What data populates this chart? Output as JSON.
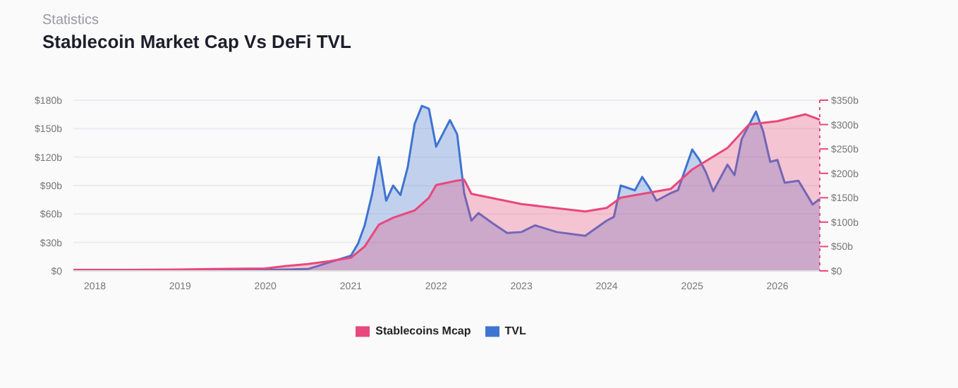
{
  "chart_data": {
    "type": "area",
    "title": "Stablecoin Market Cap Vs DeFi TVL",
    "subtitle": "Statistics",
    "series": [
      {
        "name": "Stablecoins Mcap",
        "color": "#e8487c",
        "axis": "y2",
        "x": [
          "2017-10",
          "2018-06",
          "2019-01",
          "2019-06",
          "2020-01",
          "2020-04",
          "2020-07",
          "2020-10",
          "2021-01",
          "2021-03",
          "2021-05",
          "2021-07",
          "2021-10",
          "2021-12",
          "2022-01",
          "2022-04",
          "2022-05",
          "2022-06",
          "2023-01",
          "2023-10",
          "2024-01",
          "2024-03",
          "2024-10",
          "2025-01",
          "2025-06",
          "2025-09",
          "2026-01",
          "2026-05",
          "2026-07"
        ],
        "values": [
          2,
          2,
          3,
          4,
          5,
          10,
          14,
          20,
          27,
          50,
          95,
          109,
          124,
          150,
          176,
          185,
          187,
          158,
          137,
          122,
          129,
          150,
          168,
          208,
          252,
          300,
          307,
          321,
          310
        ]
      },
      {
        "name": "TVL",
        "color": "#3f74d0",
        "x": [
          "2017-10",
          "2019-01",
          "2020-01",
          "2020-07",
          "2020-10",
          "2021-01",
          "2021-02",
          "2021-03",
          "2021-04",
          "2021-05",
          "2021-06",
          "2021-07",
          "2021-08",
          "2021-09",
          "2021-10",
          "2021-11",
          "2021-12",
          "2022-01",
          "2022-03",
          "2022-04",
          "2022-05",
          "2022-06",
          "2022-07",
          "2022-09",
          "2022-11",
          "2023-01",
          "2023-03",
          "2023-06",
          "2023-10",
          "2024-01",
          "2024-02",
          "2024-03",
          "2024-05",
          "2024-06",
          "2024-07",
          "2024-08",
          "2024-10",
          "2024-11",
          "2025-01",
          "2025-02",
          "2025-03",
          "2025-04",
          "2025-06",
          "2025-07",
          "2025-08",
          "2025-10",
          "2025-11",
          "2025-12",
          "2026-01",
          "2026-02",
          "2026-04",
          "2026-06",
          "2026-07"
        ],
        "values": [
          0,
          1,
          1,
          2,
          9,
          16,
          29,
          48,
          80,
          120,
          74,
          90,
          80,
          109,
          155,
          174,
          171,
          131,
          159,
          144,
          82,
          53,
          61,
          50,
          40,
          41,
          48,
          41,
          37,
          53,
          57,
          90,
          85,
          99,
          88,
          74,
          82,
          85,
          128,
          117,
          104,
          84,
          112,
          101,
          139,
          168,
          147,
          115,
          117,
          93,
          95,
          70,
          76
        ]
      }
    ],
    "xlim": [
      "2017-10",
      "2026-07"
    ],
    "xticks": [
      "2018",
      "2019",
      "2020",
      "2021",
      "2022",
      "2023",
      "2024",
      "2025",
      "2026"
    ],
    "ylim": [
      0,
      180
    ],
    "yticks": [
      {
        "value": 0,
        "label": "$0"
      },
      {
        "value": 30,
        "label": "$30b"
      },
      {
        "value": 60,
        "label": "$60b"
      },
      {
        "value": 90,
        "label": "$90b"
      },
      {
        "value": 120,
        "label": "$120b"
      },
      {
        "value": 150,
        "label": "$150b"
      },
      {
        "value": 180,
        "label": "$180b"
      }
    ],
    "y2lim": [
      0,
      350
    ],
    "y2ticks": [
      {
        "value": 0,
        "label": "$0"
      },
      {
        "value": 50,
        "label": "$50b"
      },
      {
        "value": 100,
        "label": "$100b"
      },
      {
        "value": 150,
        "label": "$150b"
      },
      {
        "value": 200,
        "label": "$200b"
      },
      {
        "value": 250,
        "label": "$250b"
      },
      {
        "value": 300,
        "label": "$300b"
      },
      {
        "value": 350,
        "label": "$350b"
      }
    ],
    "grid": "y",
    "legend": "bottom"
  }
}
